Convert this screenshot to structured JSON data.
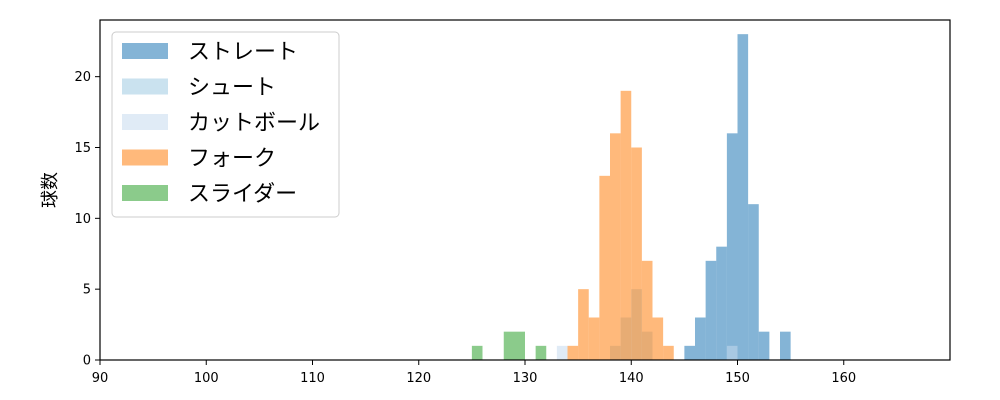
{
  "chart_data": {
    "type": "histogram",
    "ylabel": "球数",
    "xlabel": "",
    "title": "",
    "xlim": [
      90,
      170
    ],
    "ylim": [
      0,
      24
    ],
    "xticks": [
      90,
      100,
      110,
      120,
      130,
      140,
      150,
      160
    ],
    "yticks": [
      0,
      5,
      10,
      15,
      20
    ],
    "legend_position": "top-left",
    "grid": false,
    "series": [
      {
        "name": "ストレート",
        "color": "#1f77b4",
        "bins": [
          {
            "x0": 145,
            "x1": 146,
            "count": 1
          },
          {
            "x0": 146,
            "x1": 147,
            "count": 3
          },
          {
            "x0": 147,
            "x1": 148,
            "count": 7
          },
          {
            "x0": 148,
            "x1": 149,
            "count": 8
          },
          {
            "x0": 149,
            "x1": 150,
            "count": 16
          },
          {
            "x0": 150,
            "x1": 151,
            "count": 23
          },
          {
            "x0": 151,
            "x1": 152,
            "count": 11
          },
          {
            "x0": 152,
            "x1": 153,
            "count": 2
          },
          {
            "x0": 154,
            "x1": 155,
            "count": 2
          }
        ]
      },
      {
        "name": "シュート",
        "color": "#9ecae1",
        "bins": [
          {
            "x0": 138,
            "x1": 139,
            "count": 1
          },
          {
            "x0": 139,
            "x1": 140,
            "count": 3
          },
          {
            "x0": 140,
            "x1": 141,
            "count": 5
          },
          {
            "x0": 141,
            "x1": 142,
            "count": 2
          }
        ]
      },
      {
        "name": "カットボール",
        "color": "#c6dbef",
        "bins": [
          {
            "x0": 133,
            "x1": 134,
            "count": 1
          },
          {
            "x0": 149,
            "x1": 150,
            "count": 1
          }
        ]
      },
      {
        "name": "フォーク",
        "color": "#ff7f0e",
        "bins": [
          {
            "x0": 134,
            "x1": 135,
            "count": 1
          },
          {
            "x0": 135,
            "x1": 136,
            "count": 5
          },
          {
            "x0": 136,
            "x1": 137,
            "count": 3
          },
          {
            "x0": 137,
            "x1": 138,
            "count": 13
          },
          {
            "x0": 138,
            "x1": 139,
            "count": 16
          },
          {
            "x0": 139,
            "x1": 140,
            "count": 19
          },
          {
            "x0": 140,
            "x1": 141,
            "count": 15
          },
          {
            "x0": 141,
            "x1": 142,
            "count": 7
          },
          {
            "x0": 142,
            "x1": 143,
            "count": 3
          },
          {
            "x0": 143,
            "x1": 144,
            "count": 1
          }
        ]
      },
      {
        "name": "スライダー",
        "color": "#2ca02c",
        "bins": [
          {
            "x0": 125,
            "x1": 126,
            "count": 1
          },
          {
            "x0": 128,
            "x1": 130,
            "count": 2
          },
          {
            "x0": 131,
            "x1": 132,
            "count": 1
          }
        ]
      }
    ]
  }
}
